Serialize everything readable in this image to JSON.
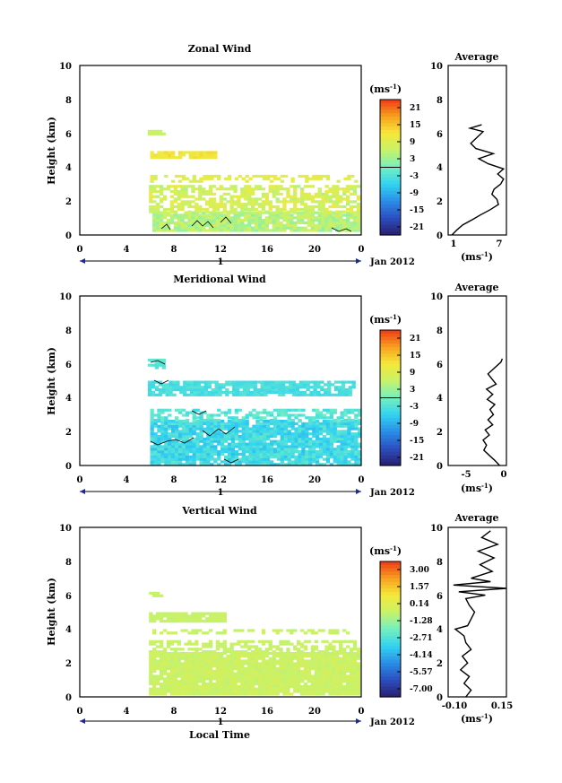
{
  "colors": {
    "ramp": [
      "#2a1f6e",
      "#2b4fc0",
      "#2a8ee8",
      "#33d3f0",
      "#74f0c0",
      "#c7f26a",
      "#f5e83a",
      "#f7a01e",
      "#ee3a16"
    ]
  },
  "chart_data": [
    {
      "type": "heatmap",
      "title": "Zonal Wind",
      "ylabel": "Height (km)",
      "xlabel": "",
      "x_ticks": [
        "0",
        "4",
        "8",
        "12",
        "16",
        "20",
        "0"
      ],
      "y_ticks": [
        "0",
        "2",
        "4",
        "6",
        "8",
        "10"
      ],
      "xlim": [
        0,
        24
      ],
      "ylim": [
        0,
        10
      ],
      "date_marker": "1",
      "date_label": "Jan 2012",
      "colorbar": {
        "unit": "(ms",
        "unit_sup": "-1",
        "unit_close": ")",
        "ticks": [
          "21",
          "15",
          "9",
          "3",
          "-3",
          "-9",
          "-15",
          "-21"
        ],
        "range": [
          -24,
          24
        ]
      },
      "average": {
        "title": "Average",
        "x_ticks": [
          "1",
          "7"
        ],
        "xlim": [
          0,
          8
        ],
        "unit": "(ms",
        "unit_sup": "-1",
        "unit_close": ")",
        "heights": [
          0.0,
          0.3,
          0.6,
          0.9,
          1.2,
          1.5,
          1.8,
          2.1,
          2.4,
          2.7,
          3.0,
          3.3,
          3.6,
          3.9,
          4.2,
          4.5,
          4.8,
          5.1,
          5.4,
          6.1,
          6.3,
          6.5
        ],
        "values": [
          0.5,
          1.2,
          2.0,
          3.3,
          4.5,
          5.8,
          6.9,
          6.7,
          6.0,
          6.3,
          7.2,
          7.6,
          6.8,
          7.6,
          5.5,
          4.2,
          6.2,
          3.8,
          3.1,
          4.8,
          3.0,
          4.6
        ]
      }
    },
    {
      "type": "heatmap",
      "title": "Meridional Wind",
      "ylabel": "Height (km)",
      "xlabel": "",
      "x_ticks": [
        "0",
        "4",
        "8",
        "12",
        "16",
        "20",
        "0"
      ],
      "y_ticks": [
        "0",
        "2",
        "4",
        "6",
        "8",
        "10"
      ],
      "xlim": [
        0,
        24
      ],
      "ylim": [
        0,
        10
      ],
      "date_marker": "1",
      "date_label": "Jan 2012",
      "colorbar": {
        "unit": "(ms",
        "unit_sup": "-1",
        "unit_close": ")",
        "ticks": [
          "21",
          "15",
          "9",
          "3",
          "-3",
          "-9",
          "-15",
          "-21"
        ],
        "range": [
          -24,
          24
        ]
      },
      "average": {
        "title": "Average",
        "x_ticks": [
          "-5",
          "0"
        ],
        "xlim": [
          -8,
          0.5
        ],
        "unit": "(ms",
        "unit_sup": "-1",
        "unit_close": ")",
        "heights": [
          0.0,
          0.3,
          0.6,
          0.9,
          1.2,
          1.5,
          1.8,
          2.1,
          2.4,
          2.7,
          3.0,
          3.3,
          3.6,
          3.9,
          4.2,
          4.5,
          4.8,
          5.1,
          5.4,
          6.1,
          6.3
        ],
        "values": [
          -0.5,
          -1.2,
          -2.0,
          -2.8,
          -2.4,
          -2.9,
          -2.0,
          -2.6,
          -1.5,
          -2.2,
          -1.4,
          -1.9,
          -1.2,
          -2.3,
          -1.5,
          -2.4,
          -1.0,
          -1.6,
          -2.2,
          -0.3,
          -0.1
        ]
      }
    },
    {
      "type": "heatmap",
      "title": "Vertical Wind",
      "ylabel": "Height (km)",
      "xlabel": "Local Time",
      "x_ticks": [
        "0",
        "4",
        "8",
        "12",
        "16",
        "20",
        "0"
      ],
      "y_ticks": [
        "0",
        "2",
        "4",
        "6",
        "8",
        "10"
      ],
      "xlim": [
        0,
        24
      ],
      "ylim": [
        0,
        10
      ],
      "date_marker": "1",
      "date_label": "Jan 2012",
      "colorbar": {
        "unit": "(ms",
        "unit_sup": "-1",
        "unit_close": ")",
        "ticks": [
          "3.00",
          "1.57",
          "0.14",
          "-1.28",
          "-2.71",
          "-4.14",
          "-5.57",
          "-7.00"
        ],
        "range": [
          -7.7,
          3.7
        ]
      },
      "average": {
        "title": "Average",
        "x_ticks": [
          "-0.10",
          "0.15"
        ],
        "xlim": [
          -0.15,
          0.18
        ],
        "unit": "(ms",
        "unit_sup": "-1",
        "unit_close": ")",
        "heights": [
          0.0,
          0.4,
          0.8,
          1.2,
          1.6,
          2.0,
          2.4,
          2.8,
          3.2,
          3.6,
          4.0,
          4.2,
          4.6,
          5.0,
          5.4,
          5.8,
          6.0,
          6.2,
          6.4,
          6.6,
          6.8,
          7.0,
          7.4,
          7.8,
          8.2,
          8.6,
          9.0,
          9.4,
          9.8
        ],
        "values": [
          -0.05,
          -0.02,
          -0.06,
          -0.03,
          -0.08,
          -0.04,
          -0.07,
          -0.02,
          -0.05,
          -0.06,
          -0.11,
          -0.04,
          -0.02,
          0.0,
          -0.03,
          -0.05,
          0.06,
          -0.09,
          0.18,
          -0.12,
          0.09,
          -0.02,
          0.1,
          0.03,
          0.11,
          0.02,
          0.13,
          0.04,
          0.09
        ]
      }
    }
  ]
}
